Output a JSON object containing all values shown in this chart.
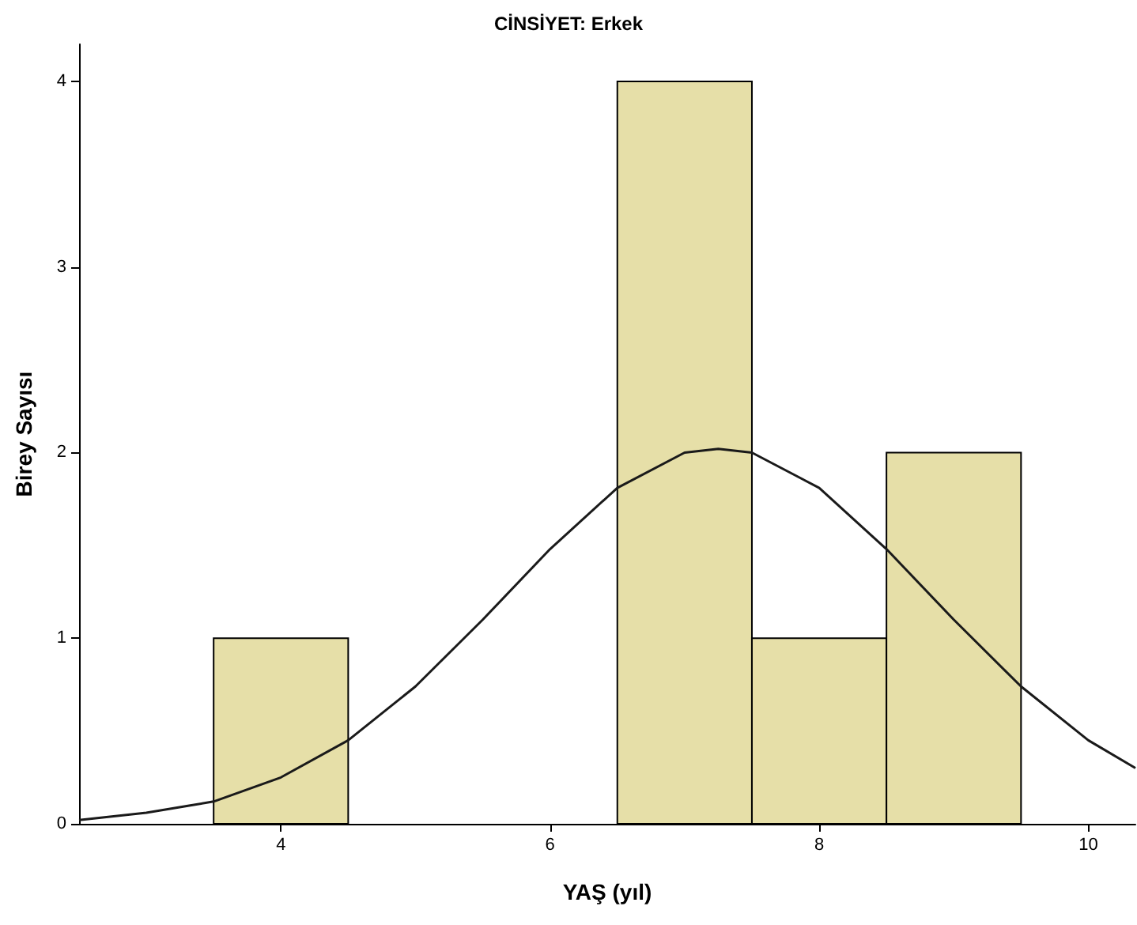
{
  "chart_data": {
    "type": "histogram",
    "title": "CİNSİYET: Erkek",
    "xlabel": "YAŞ (yıl)",
    "ylabel": "Birey Sayısı",
    "bins": [
      3.5,
      4.5,
      5.5,
      6.5,
      7.5,
      8.5,
      9.5
    ],
    "values": [
      1,
      0,
      0,
      4,
      1,
      2
    ],
    "color": "#e6dfa8",
    "series": [
      {
        "type": "line",
        "color": "#1a1a1a",
        "x": [
          2.5,
          3,
          3.5,
          4,
          4.5,
          5,
          5.5,
          6,
          6.5,
          7,
          7.25,
          7.5,
          8,
          8.5,
          9,
          9.5,
          10,
          10.35
        ],
        "values": [
          0.02,
          0.06,
          0.12,
          0.25,
          0.45,
          0.74,
          1.1,
          1.48,
          1.81,
          2.0,
          2.02,
          2.0,
          1.81,
          1.48,
          1.1,
          0.74,
          0.45,
          0.3
        ]
      }
    ],
    "xlim": [
      2.5,
      10.35
    ],
    "xticks": [
      4,
      6,
      8,
      10
    ],
    "ylim": [
      0,
      4.2
    ],
    "yticks": [
      0,
      1,
      2,
      3,
      4
    ],
    "grid": false,
    "marker": "none",
    "line_style": "solid"
  }
}
